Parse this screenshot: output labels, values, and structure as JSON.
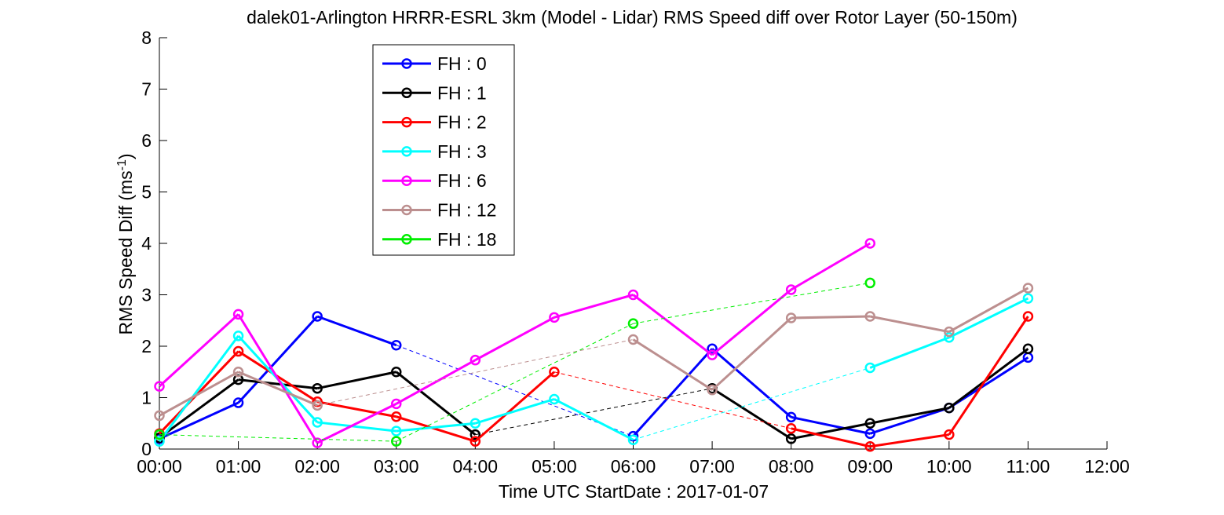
{
  "chart_data": {
    "type": "line",
    "title": "dalek01-Arlington HRRR-ESRL 3km (Model - Lidar) RMS Speed diff over Rotor Layer (50-150m)",
    "xlabel": "Time UTC     StartDate : 2017-01-07",
    "ylabel_main": "RMS Speed Diff (ms",
    "ylabel_sup": "-1",
    "ylabel_end": ")",
    "xlim": [
      0,
      12
    ],
    "ylim": [
      0,
      8
    ],
    "x_ticks": [
      0,
      1,
      2,
      3,
      4,
      5,
      6,
      7,
      8,
      9,
      10,
      11,
      12
    ],
    "x_tick_labels": [
      "00:00",
      "01:00",
      "02:00",
      "03:00",
      "04:00",
      "05:00",
      "06:00",
      "07:00",
      "08:00",
      "09:00",
      "10:00",
      "11:00",
      "12:00"
    ],
    "y_ticks": [
      0,
      1,
      2,
      3,
      4,
      5,
      6,
      7,
      8
    ],
    "y_tick_labels": [
      "0",
      "1",
      "2",
      "3",
      "4",
      "5",
      "6",
      "7",
      "8"
    ],
    "grid": false,
    "legend_position": "upper-left",
    "series": [
      {
        "name": "FH : 0",
        "color": "#0000ff",
        "x": [
          0,
          1,
          2,
          3,
          6,
          7,
          8,
          9,
          10,
          11
        ],
        "y": [
          0.2,
          0.9,
          2.58,
          2.02,
          0.25,
          1.95,
          0.62,
          0.3,
          0.8,
          1.78
        ]
      },
      {
        "name": "FH : 1",
        "color": "#000000",
        "x": [
          0,
          1,
          2,
          3,
          4,
          7,
          8,
          9,
          10,
          11
        ],
        "y": [
          0.22,
          1.35,
          1.18,
          1.5,
          0.28,
          1.18,
          0.2,
          0.5,
          0.8,
          1.95
        ]
      },
      {
        "name": "FH : 2",
        "color": "#ff0000",
        "x": [
          0,
          1,
          2,
          3,
          4,
          5,
          8,
          9,
          10,
          11
        ],
        "y": [
          0.3,
          1.9,
          0.92,
          0.63,
          0.15,
          1.5,
          0.4,
          0.05,
          0.28,
          2.58
        ]
      },
      {
        "name": "FH : 3",
        "color": "#00ffff",
        "x": [
          0,
          1,
          2,
          3,
          4,
          5,
          6,
          9,
          10,
          11
        ],
        "y": [
          0.15,
          2.2,
          0.52,
          0.35,
          0.5,
          0.97,
          0.18,
          1.58,
          2.17,
          2.93
        ]
      },
      {
        "name": "FH : 6",
        "color": "#ff00ff",
        "x": [
          0,
          1,
          2,
          3,
          4,
          5,
          6,
          7,
          8,
          9
        ],
        "y": [
          1.22,
          2.62,
          0.12,
          0.88,
          1.73,
          2.56,
          3.0,
          1.83,
          3.1,
          4.0
        ]
      },
      {
        "name": "FH : 12",
        "color": "#bc8f8f",
        "x": [
          0,
          1,
          2,
          6,
          7,
          8,
          9,
          10,
          11
        ],
        "y": [
          0.65,
          1.5,
          0.85,
          2.13,
          1.15,
          2.55,
          2.58,
          2.28,
          3.13
        ]
      },
      {
        "name": "FH : 18",
        "color": "#00ee00",
        "x": [
          0,
          3,
          6,
          9
        ],
        "y": [
          0.28,
          0.15,
          2.44,
          3.23
        ]
      }
    ]
  }
}
